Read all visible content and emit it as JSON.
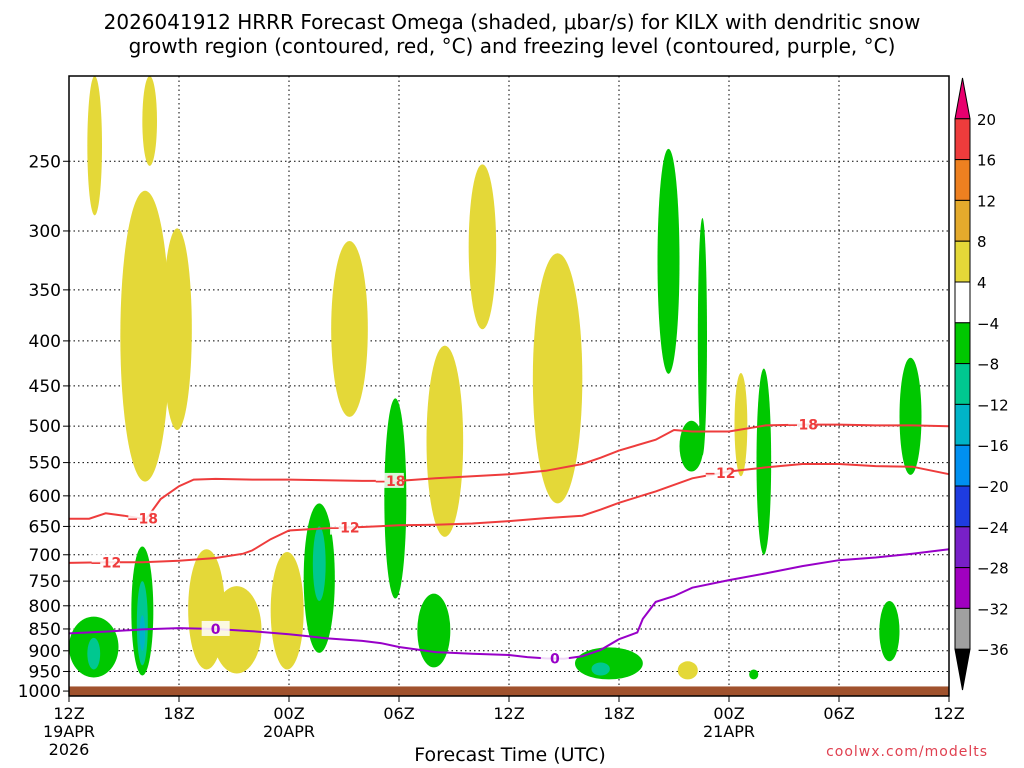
{
  "title_line1": "2026041912 HRRR Forecast Omega (shaded, μbar/s) for KILX with dendritic snow",
  "title_line2": "growth region (contoured, red, °C) and freezing level (contoured, purple, °C)",
  "credit": "coolwx.com/modelts",
  "chart_data": {
    "type": "time-height cross section",
    "xlabel": "Forecast Time (UTC)",
    "x_ticks": [
      {
        "hour": 0,
        "label": "12Z",
        "date": "19APR",
        "year": "2026"
      },
      {
        "hour": 6,
        "label": "18Z"
      },
      {
        "hour": 12,
        "label": "00Z",
        "date": "20APR"
      },
      {
        "hour": 18,
        "label": "06Z"
      },
      {
        "hour": 24,
        "label": "12Z"
      },
      {
        "hour": 30,
        "label": "18Z"
      },
      {
        "hour": 36,
        "label": "00Z",
        "date": "21APR"
      },
      {
        "hour": 42,
        "label": "06Z"
      },
      {
        "hour": 48,
        "label": "12Z"
      }
    ],
    "y_ticks": [
      250,
      300,
      350,
      400,
      450,
      500,
      550,
      600,
      650,
      700,
      750,
      800,
      850,
      900,
      950,
      1000
    ],
    "y_range": [
      200,
      1013
    ],
    "x_range": [
      0,
      48
    ],
    "colorbar": {
      "labels": [
        "20",
        "16",
        "12",
        "8",
        "4",
        "−4",
        "−8",
        "−12",
        "−16",
        "−20",
        "−24",
        "−28",
        "−32",
        "−36"
      ],
      "colors": [
        "#e8006e",
        "#ee3c3c",
        "#ee8020",
        "#e4aa2c",
        "#e4d838",
        "#ffffff",
        "#00c800",
        "#00c890",
        "#00b4c8",
        "#0090f0",
        "#1e3ce0",
        "#7820c8",
        "#a000c0",
        "#a0a0a0",
        "#000000"
      ]
    },
    "omega_colors": {
      "pos4": "#e4d838",
      "neg4": "#00c800",
      "neg8": "#00c890",
      "neg12": "#00b4c8"
    },
    "ground_color": "#a0522d",
    "contours": [
      {
        "name": "dgz-minus18",
        "color": "#ee3c3c",
        "label": "−18",
        "label_hours": [
          4,
          17.5,
          40
        ],
        "points": [
          [
            0,
            637
          ],
          [
            1.1,
            637
          ],
          [
            2,
            628
          ],
          [
            3,
            632
          ],
          [
            4.2,
            638
          ],
          [
            5,
            605
          ],
          [
            6,
            585
          ],
          [
            6.8,
            575
          ],
          [
            8,
            574
          ],
          [
            10,
            575
          ],
          [
            12,
            575
          ],
          [
            14,
            576
          ],
          [
            16,
            577
          ],
          [
            18,
            577
          ],
          [
            20,
            573
          ],
          [
            22,
            570
          ],
          [
            24,
            567
          ],
          [
            26,
            562
          ],
          [
            28,
            552
          ],
          [
            29,
            543
          ],
          [
            30,
            533
          ],
          [
            32,
            518
          ],
          [
            33,
            505
          ],
          [
            34,
            507
          ],
          [
            36,
            507
          ],
          [
            38,
            499
          ],
          [
            40,
            498
          ],
          [
            42,
            498
          ],
          [
            44,
            499
          ],
          [
            46,
            499
          ],
          [
            48,
            500
          ]
        ]
      },
      {
        "name": "dgz-minus12",
        "color": "#ee3c3c",
        "label": "−12",
        "label_hours": [
          2,
          15,
          35.5
        ],
        "points": [
          [
            0,
            715
          ],
          [
            2,
            714
          ],
          [
            4,
            714
          ],
          [
            6,
            711
          ],
          [
            8,
            706
          ],
          [
            9.5,
            698
          ],
          [
            10,
            692
          ],
          [
            11,
            672
          ],
          [
            12,
            657
          ],
          [
            14,
            653
          ],
          [
            16,
            651
          ],
          [
            18,
            648
          ],
          [
            20,
            647
          ],
          [
            22,
            645
          ],
          [
            24,
            641
          ],
          [
            26,
            636
          ],
          [
            28,
            632
          ],
          [
            29,
            622
          ],
          [
            30,
            611
          ],
          [
            31,
            602
          ],
          [
            32,
            593
          ],
          [
            34,
            573
          ],
          [
            36,
            563
          ],
          [
            38,
            557
          ],
          [
            40,
            552
          ],
          [
            42,
            552
          ],
          [
            44,
            555
          ],
          [
            46,
            556
          ],
          [
            48,
            567
          ]
        ]
      },
      {
        "name": "freezing-level",
        "color": "#9800c8",
        "label": "0",
        "label_hours": [
          8,
          26.5
        ],
        "points": [
          [
            0,
            860
          ],
          [
            2,
            856
          ],
          [
            4,
            851
          ],
          [
            6,
            848
          ],
          [
            8,
            850
          ],
          [
            10,
            855
          ],
          [
            12,
            862
          ],
          [
            13,
            866
          ],
          [
            14,
            871
          ],
          [
            16,
            877
          ],
          [
            17,
            882
          ],
          [
            18,
            891
          ],
          [
            20,
            903
          ],
          [
            22,
            907
          ],
          [
            24,
            910
          ],
          [
            25,
            915
          ],
          [
            26,
            918
          ],
          [
            27,
            919
          ],
          [
            28,
            913
          ],
          [
            29,
            898
          ],
          [
            30,
            873
          ],
          [
            31,
            858
          ],
          [
            31.3,
            828
          ],
          [
            32,
            792
          ],
          [
            33,
            780
          ],
          [
            34,
            763
          ],
          [
            36,
            748
          ],
          [
            38,
            735
          ],
          [
            40,
            721
          ],
          [
            42,
            710
          ],
          [
            44,
            705
          ],
          [
            46,
            698
          ],
          [
            48,
            690
          ]
        ]
      }
    ],
    "omega_features": [
      {
        "c": "pos4",
        "x": 1.0,
        "x2": 1.8,
        "p1": 200,
        "p2": 288
      },
      {
        "c": "pos4",
        "x": 4.0,
        "x2": 4.8,
        "p1": 200,
        "p2": 253
      },
      {
        "c": "pos4",
        "x": 2.8,
        "x2": 5.5,
        "p1": 270,
        "p2": 578
      },
      {
        "c": "pos4",
        "x": 5.1,
        "x2": 6.7,
        "p1": 298,
        "p2": 505
      },
      {
        "c": "pos4",
        "x": 14.3,
        "x2": 16.3,
        "p1": 308,
        "p2": 488
      },
      {
        "c": "pos4",
        "x": 19.5,
        "x2": 21.5,
        "p1": 405,
        "p2": 668
      },
      {
        "c": "pos4",
        "x": 21.8,
        "x2": 23.3,
        "p1": 252,
        "p2": 388
      },
      {
        "c": "pos4",
        "x": 25.3,
        "x2": 28.0,
        "p1": 318,
        "p2": 612
      },
      {
        "c": "pos4",
        "x": 6.5,
        "x2": 8.5,
        "p1": 690,
        "p2": 945
      },
      {
        "c": "pos4",
        "x": 7.8,
        "x2": 10.5,
        "p1": 760,
        "p2": 955
      },
      {
        "c": "pos4",
        "x": 11.0,
        "x2": 12.8,
        "p1": 695,
        "p2": 945
      },
      {
        "c": "pos4",
        "x": 36.3,
        "x2": 37.0,
        "p1": 435,
        "p2": 570
      },
      {
        "c": "pos4",
        "x": 33.2,
        "x2": 34.3,
        "p1": 925,
        "p2": 970
      },
      {
        "c": "neg4",
        "x": 34.3,
        "x2": 34.8,
        "p1": 290,
        "p2": 540
      },
      {
        "c": "neg4",
        "x": 33.3,
        "x2": 34.6,
        "p1": 493,
        "p2": 563
      },
      {
        "c": "neg4",
        "x": 32.1,
        "x2": 33.3,
        "p1": 242,
        "p2": 436
      },
      {
        "c": "neg4",
        "x": 37.5,
        "x2": 38.3,
        "p1": 430,
        "p2": 700
      },
      {
        "c": "neg4",
        "x": 45.3,
        "x2": 46.5,
        "p1": 418,
        "p2": 568
      },
      {
        "c": "neg4",
        "x": 17.2,
        "x2": 18.4,
        "p1": 465,
        "p2": 785
      },
      {
        "c": "neg4",
        "x": 19.0,
        "x2": 20.8,
        "p1": 775,
        "p2": 940
      },
      {
        "c": "neg4",
        "x": 12.8,
        "x2": 14.5,
        "p1": 612,
        "p2": 905
      },
      {
        "c": "neg4",
        "x": 3.4,
        "x2": 4.6,
        "p1": 685,
        "p2": 960
      },
      {
        "c": "neg4",
        "x": 0.0,
        "x2": 2.7,
        "p1": 823,
        "p2": 965
      },
      {
        "c": "neg4",
        "x": 27.6,
        "x2": 31.3,
        "p1": 892,
        "p2": 970
      },
      {
        "c": "neg4",
        "x": 37.1,
        "x2": 37.6,
        "p1": 945,
        "p2": 970
      },
      {
        "c": "neg4",
        "x": 44.2,
        "x2": 45.3,
        "p1": 790,
        "p2": 925
      },
      {
        "c": "neg8",
        "x": 13.3,
        "x2": 14.0,
        "p1": 650,
        "p2": 790
      },
      {
        "c": "neg8",
        "x": 3.7,
        "x2": 4.3,
        "p1": 750,
        "p2": 935
      },
      {
        "c": "neg8",
        "x": 1.0,
        "x2": 1.7,
        "p1": 870,
        "p2": 945
      },
      {
        "c": "neg8",
        "x": 28.5,
        "x2": 29.5,
        "p1": 928,
        "p2": 960
      },
      {
        "c": "neg12",
        "x": 3.85,
        "x2": 4.15,
        "p1": 820,
        "p2": 900
      }
    ]
  }
}
